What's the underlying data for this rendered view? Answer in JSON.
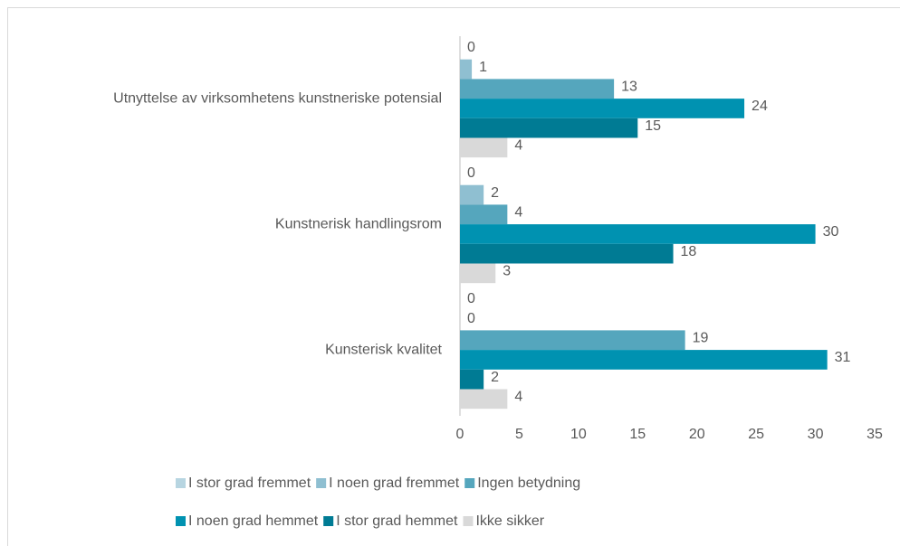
{
  "chart_data": {
    "type": "hbar",
    "categories": [
      "Utnyttelse av virksomhetens kunstneriske potensial",
      "Kunstnerisk handlingsrom",
      "Kunsterisk kvalitet"
    ],
    "series": [
      {
        "name": "I stor grad fremmet",
        "color": "#b7d5e1",
        "values": [
          0,
          0,
          0
        ]
      },
      {
        "name": "I noen grad fremmet",
        "color": "#8fbfd1",
        "values": [
          1,
          2,
          0
        ]
      },
      {
        "name": "Ingen betydning",
        "color": "#55a6bd",
        "values": [
          13,
          4,
          19
        ]
      },
      {
        "name": "I noen grad hemmet",
        "color": "#0092b1",
        "values": [
          24,
          30,
          31
        ]
      },
      {
        "name": "I stor grad hemmet",
        "color": "#007b94",
        "values": [
          15,
          18,
          2
        ]
      },
      {
        "name": "Ikke sikker",
        "color": "#d9d9d9",
        "values": [
          4,
          3,
          4
        ]
      }
    ],
    "xlim": [
      0,
      35
    ],
    "xticks": [
      0,
      5,
      10,
      15,
      20,
      25,
      30,
      35
    ]
  }
}
